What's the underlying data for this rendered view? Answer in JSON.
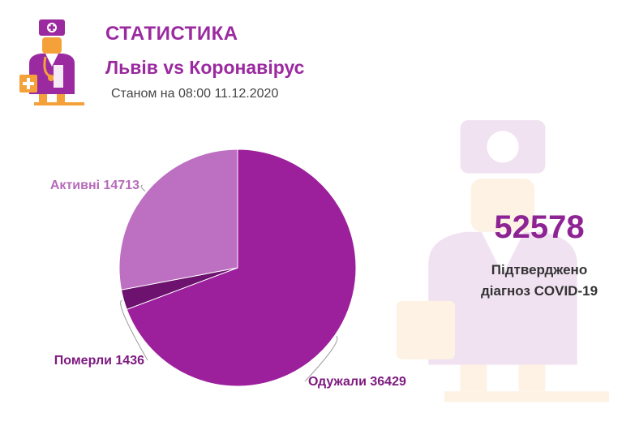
{
  "header": {
    "title": "СТАТИСТИКА",
    "subtitle": "Львів vs Коронавірус",
    "date": "Станом на 08:00 11.12.2020",
    "logo_icon": "doctor-icon"
  },
  "summary": {
    "total": "52578",
    "caption_line1": "Підтверджено",
    "caption_line2": "діагноз COVID-19"
  },
  "colors": {
    "recovered": "#9c1f9c",
    "deaths": "#6d136f",
    "active": "#bd6fc2",
    "label_active": "#b56bb9",
    "label_dark": "#7d1a80",
    "accent": "#9b2aa0",
    "logo_orange": "#f4a13a"
  },
  "chart_data": {
    "type": "pie",
    "title": "",
    "slices": [
      {
        "label": "Одужали",
        "value": 36429,
        "display": "Одужали 36429"
      },
      {
        "label": "Померли",
        "value": 1436,
        "display": "Померли 1436"
      },
      {
        "label": "Активні",
        "value": 14713,
        "display": "Активні 14713"
      }
    ]
  }
}
